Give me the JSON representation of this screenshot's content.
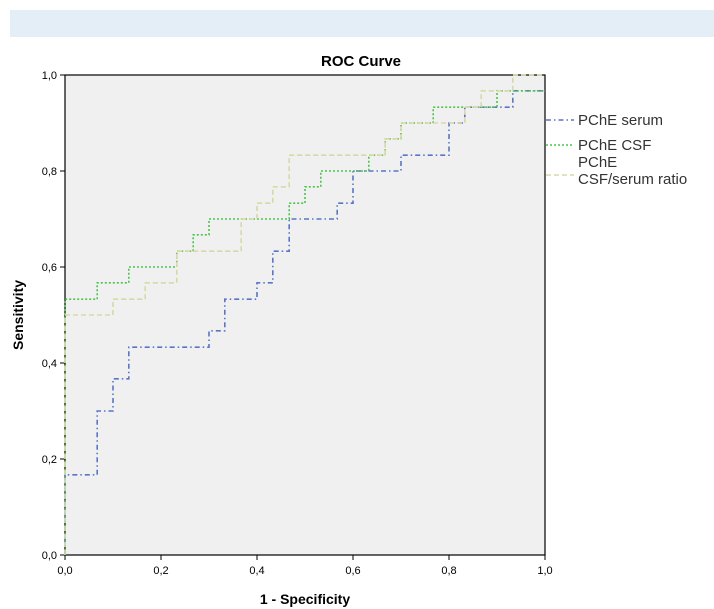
{
  "chart_data": {
    "type": "line",
    "title": "ROC Curve",
    "xlabel": "1 - Specificity",
    "ylabel": "Sensitivity",
    "xlim": [
      0,
      1
    ],
    "ylim": [
      0,
      1
    ],
    "xticks": [
      "0,0",
      "0,2",
      "0,4",
      "0,6",
      "0,8",
      "1,0"
    ],
    "yticks": [
      "0,0",
      "0,2",
      "0,4",
      "0,6",
      "0,8",
      "1,0"
    ],
    "grid": false,
    "background": "#f0f0f0",
    "legend_position": "right",
    "series": [
      {
        "name": "PChE serum",
        "color": "#5b74c9",
        "dash": "dash-dot",
        "points": [
          [
            0,
            0
          ],
          [
            0,
            0.167
          ],
          [
            0.067,
            0.167
          ],
          [
            0.067,
            0.3
          ],
          [
            0.1,
            0.3
          ],
          [
            0.1,
            0.367
          ],
          [
            0.133,
            0.367
          ],
          [
            0.133,
            0.433
          ],
          [
            0.3,
            0.433
          ],
          [
            0.3,
            0.467
          ],
          [
            0.333,
            0.467
          ],
          [
            0.333,
            0.533
          ],
          [
            0.4,
            0.533
          ],
          [
            0.4,
            0.567
          ],
          [
            0.433,
            0.567
          ],
          [
            0.433,
            0.633
          ],
          [
            0.433,
            0.633
          ],
          [
            0.433,
            0.633
          ],
          [
            0.433,
            0.633
          ],
          [
            0.433,
            0.633
          ],
          [
            0.467,
            0.633
          ],
          [
            0.467,
            0.667
          ],
          [
            0.467,
            0.667
          ],
          [
            0.467,
            0.7
          ],
          [
            0.567,
            0.7
          ],
          [
            0.567,
            0.733
          ],
          [
            0.6,
            0.733
          ],
          [
            0.6,
            0.8
          ],
          [
            0.7,
            0.8
          ],
          [
            0.7,
            0.833
          ],
          [
            0.8,
            0.833
          ],
          [
            0.8,
            0.9
          ],
          [
            0.833,
            0.9
          ],
          [
            0.833,
            0.933
          ],
          [
            0.933,
            0.933
          ],
          [
            0.933,
            0.967
          ],
          [
            1,
            0.967
          ]
        ]
      },
      {
        "name": "PChE CSF",
        "color": "#4ec24e",
        "dash": "dotted",
        "points": [
          [
            0,
            0
          ],
          [
            0,
            0.533
          ],
          [
            0.067,
            0.533
          ],
          [
            0.067,
            0.567
          ],
          [
            0.133,
            0.567
          ],
          [
            0.133,
            0.6
          ],
          [
            0.233,
            0.6
          ],
          [
            0.233,
            0.633
          ],
          [
            0.267,
            0.633
          ],
          [
            0.267,
            0.667
          ],
          [
            0.3,
            0.667
          ],
          [
            0.3,
            0.7
          ],
          [
            0.467,
            0.7
          ],
          [
            0.467,
            0.733
          ],
          [
            0.5,
            0.733
          ],
          [
            0.5,
            0.767
          ],
          [
            0.533,
            0.767
          ],
          [
            0.533,
            0.8
          ],
          [
            0.633,
            0.8
          ],
          [
            0.633,
            0.833
          ],
          [
            0.667,
            0.833
          ],
          [
            0.667,
            0.867
          ],
          [
            0.7,
            0.867
          ],
          [
            0.7,
            0.9
          ],
          [
            0.767,
            0.9
          ],
          [
            0.767,
            0.933
          ],
          [
            0.9,
            0.933
          ],
          [
            0.9,
            0.967
          ],
          [
            1,
            0.967
          ]
        ]
      },
      {
        "name": "PChE CSF/serum ratio",
        "label_lines": [
          "PChE",
          "CSF/serum ratio"
        ],
        "color": "#d8d8a8",
        "dash": "dashed",
        "points": [
          [
            0,
            0
          ],
          [
            0,
            0.5
          ],
          [
            0.1,
            0.5
          ],
          [
            0.1,
            0.533
          ],
          [
            0.167,
            0.533
          ],
          [
            0.167,
            0.567
          ],
          [
            0.233,
            0.567
          ],
          [
            0.233,
            0.633
          ],
          [
            0.367,
            0.633
          ],
          [
            0.367,
            0.7
          ],
          [
            0.4,
            0.7
          ],
          [
            0.4,
            0.733
          ],
          [
            0.433,
            0.733
          ],
          [
            0.433,
            0.767
          ],
          [
            0.467,
            0.767
          ],
          [
            0.467,
            0.833
          ],
          [
            0.667,
            0.833
          ],
          [
            0.667,
            0.867
          ],
          [
            0.7,
            0.867
          ],
          [
            0.7,
            0.9
          ],
          [
            0.833,
            0.9
          ],
          [
            0.833,
            0.933
          ],
          [
            0.867,
            0.933
          ],
          [
            0.867,
            0.967
          ],
          [
            0.933,
            0.967
          ],
          [
            0.933,
            1
          ],
          [
            1,
            1
          ]
        ]
      }
    ]
  }
}
